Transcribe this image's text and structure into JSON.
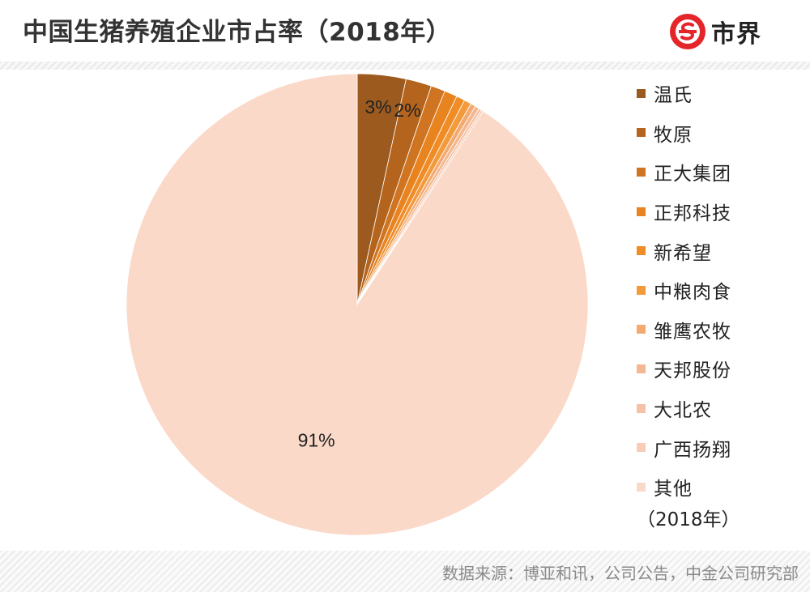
{
  "header": {
    "title": "中国生猪养殖企业市占率（2018年）",
    "logo_text": "市界"
  },
  "chart_data": {
    "type": "pie",
    "title": "中国生猪养殖企业市占率（2018年）",
    "slices": [
      {
        "name": "温氏",
        "value": 3.4,
        "color": "#9c5a1f",
        "label": "3%"
      },
      {
        "name": "牧原",
        "value": 1.8,
        "color": "#b4641c",
        "label": "2%"
      },
      {
        "name": "正大集团",
        "value": 1.0,
        "color": "#cf7421",
        "label": ""
      },
      {
        "name": "正邦科技",
        "value": 0.9,
        "color": "#e8841f",
        "label": ""
      },
      {
        "name": "新希望",
        "value": 0.6,
        "color": "#f08c26",
        "label": ""
      },
      {
        "name": "中粮肉食",
        "value": 0.5,
        "color": "#f39a3c",
        "label": ""
      },
      {
        "name": "雏鹰农牧",
        "value": 0.35,
        "color": "#f2aa70",
        "label": ""
      },
      {
        "name": "天邦股份",
        "value": 0.3,
        "color": "#f4b78f",
        "label": ""
      },
      {
        "name": "大北农",
        "value": 0.2,
        "color": "#f6c2a6",
        "label": ""
      },
      {
        "name": "广西扬翔",
        "value": 0.15,
        "color": "#f8ccb6",
        "label": ""
      },
      {
        "name": "其他",
        "value": 90.8,
        "color": "#fbd9c9",
        "label": "91%"
      }
    ],
    "legend_note": "（2018年）",
    "legend_position": "right",
    "source": "数据来源：博亚和讯，公司公告，中金公司研究部"
  }
}
